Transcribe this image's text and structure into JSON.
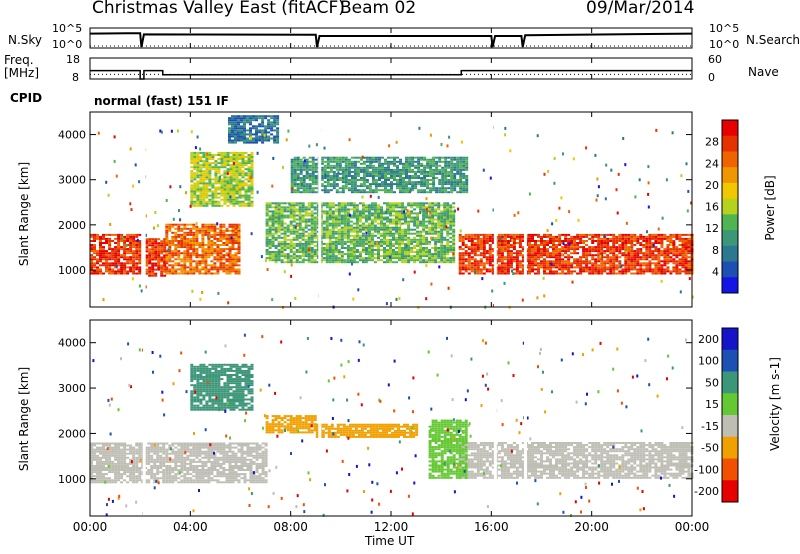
{
  "header": {
    "title": "Christmas Valley East (fitACF)",
    "beam": "Beam 02",
    "date": "09/Mar/2014"
  },
  "colors": {
    "power_scale": [
      "#1414e6",
      "#1e50b4",
      "#2d7891",
      "#3c9678",
      "#50b450",
      "#b4d21e",
      "#f0c800",
      "#f09600",
      "#f06400",
      "#e63200",
      "#e60000"
    ],
    "velocity_scale": [
      "#e60000",
      "#f05000",
      "#f0a000",
      "#bebeb4",
      "#64c832",
      "#3c9678",
      "#1e50b4",
      "#1414c8"
    ]
  },
  "chart_data": [
    {
      "type": "line",
      "panel": "noise",
      "label_left": "N.Sky",
      "label_right": "N.Search",
      "left_ticks": [
        "10^5",
        "10^0"
      ],
      "right_ticks": [
        "10^5",
        "10^0"
      ],
      "x_hours": [
        0,
        2,
        2.05,
        2.15,
        9,
        9.05,
        9.15,
        16,
        16.05,
        16.15,
        17.2,
        17.25,
        17.35,
        24
      ],
      "y_relative": [
        0.72,
        0.74,
        0.05,
        0.68,
        0.66,
        0.05,
        0.6,
        0.6,
        0.05,
        0.6,
        0.6,
        0.05,
        0.64,
        0.72
      ]
    },
    {
      "type": "line",
      "panel": "frequency",
      "label_left": "Freq. [MHz]",
      "label_right": "Nave",
      "left_ticks": [
        "18",
        "8"
      ],
      "right_ticks": [
        "60",
        "0"
      ],
      "freq_segments_hours": [
        [
          0,
          2,
          12
        ],
        [
          2,
          2.15,
          8
        ],
        [
          2.15,
          2.9,
          12
        ],
        [
          2.9,
          14.8,
          10
        ],
        [
          14.8,
          24,
          12
        ]
      ],
      "ylim": [
        8,
        18
      ]
    },
    {
      "type": "heatmap",
      "panel": "cpid",
      "label": "CPID",
      "text": "normal (fast) 151 IF"
    },
    {
      "type": "heatmap",
      "panel": "power",
      "ylabel": "Slant Range [km]",
      "yticks": [
        1000,
        2000,
        3000,
        4000
      ],
      "ylim": [
        180,
        4500
      ],
      "colorbar_label": "Power [dB]",
      "colorbar_ticks": [
        4,
        8,
        12,
        16,
        20,
        24,
        28
      ],
      "bands": [
        {
          "x": [
            0,
            2
          ],
          "r": [
            900,
            1800
          ],
          "level": 9
        },
        {
          "x": [
            2.2,
            3
          ],
          "r": [
            850,
            1700
          ],
          "level": 9
        },
        {
          "x": [
            3,
            6
          ],
          "r": [
            900,
            2000
          ],
          "level": 8
        },
        {
          "x": [
            14.7,
            24
          ],
          "r": [
            900,
            1800
          ],
          "level": 9
        },
        {
          "x": [
            7,
            14.5
          ],
          "r": [
            1150,
            2500
          ],
          "level": 4
        },
        {
          "x": [
            8,
            15
          ],
          "r": [
            2700,
            3500
          ],
          "level": 3
        },
        {
          "x": [
            4,
            6.5
          ],
          "r": [
            2400,
            3600
          ],
          "level": 5
        },
        {
          "x": [
            5.5,
            7.5
          ],
          "r": [
            3800,
            4400
          ],
          "level": 2
        }
      ]
    },
    {
      "type": "heatmap",
      "panel": "velocity",
      "ylabel": "Slant Range [km]",
      "yticks": [
        1000,
        2000,
        3000,
        4000
      ],
      "ylim": [
        180,
        4500
      ],
      "colorbar_label": "Velocity [m s-1]",
      "colorbar_ticks": [
        200,
        100,
        50,
        15,
        -15,
        -50,
        -100,
        -200
      ],
      "xticks": [
        "00:00",
        "04:00",
        "08:00",
        "12:00",
        "16:00",
        "20:00",
        "00:00"
      ],
      "xlabel": "Time UT",
      "bands": [
        {
          "x": [
            0,
            7
          ],
          "r": [
            900,
            1800
          ],
          "level": 3
        },
        {
          "x": [
            14.7,
            24
          ],
          "r": [
            1000,
            1800
          ],
          "level": 3
        },
        {
          "x": [
            7,
            9
          ],
          "r": [
            2000,
            2400
          ],
          "level": 2
        },
        {
          "x": [
            9,
            13
          ],
          "r": [
            1900,
            2200
          ],
          "level": 2
        },
        {
          "x": [
            13.5,
            15
          ],
          "r": [
            1000,
            2300
          ],
          "level": 4
        },
        {
          "x": [
            4,
            6.5
          ],
          "r": [
            2500,
            3500
          ],
          "level": 5
        }
      ]
    }
  ]
}
